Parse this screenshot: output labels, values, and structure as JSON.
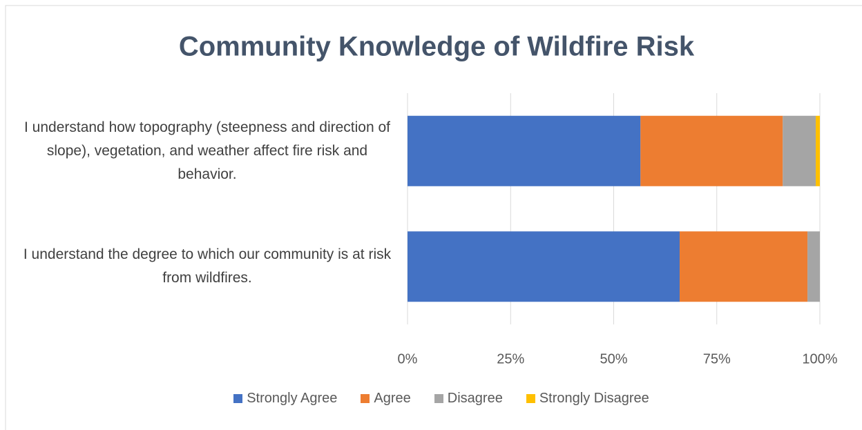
{
  "chart_data": {
    "type": "stacked_bar_horizontal",
    "title": "Community Knowledge of Wildfire Risk",
    "categories": [
      "I understand how topography (steepness and direction of slope), vegetation, and weather affect fire risk and behavior.",
      "I understand the degree to which our community is at risk from wildfires."
    ],
    "series": [
      {
        "name": "Strongly Agree",
        "color": "#4472c4",
        "values": [
          56.5,
          66
        ]
      },
      {
        "name": "Agree",
        "color": "#ed7d31",
        "values": [
          34.5,
          31
        ]
      },
      {
        "name": "Disagree",
        "color": "#a5a5a5",
        "values": [
          8,
          3
        ]
      },
      {
        "name": "Strongly Disagree",
        "color": "#ffc000",
        "values": [
          1,
          0
        ]
      }
    ],
    "xlim": [
      0,
      100
    ],
    "xticks": [
      {
        "value": 0,
        "label": "0%"
      },
      {
        "value": 25,
        "label": "25%"
      },
      {
        "value": 50,
        "label": "50%"
      },
      {
        "value": 75,
        "label": "75%"
      },
      {
        "value": 100,
        "label": "100%"
      }
    ],
    "grid": true,
    "legend": "bottom"
  }
}
